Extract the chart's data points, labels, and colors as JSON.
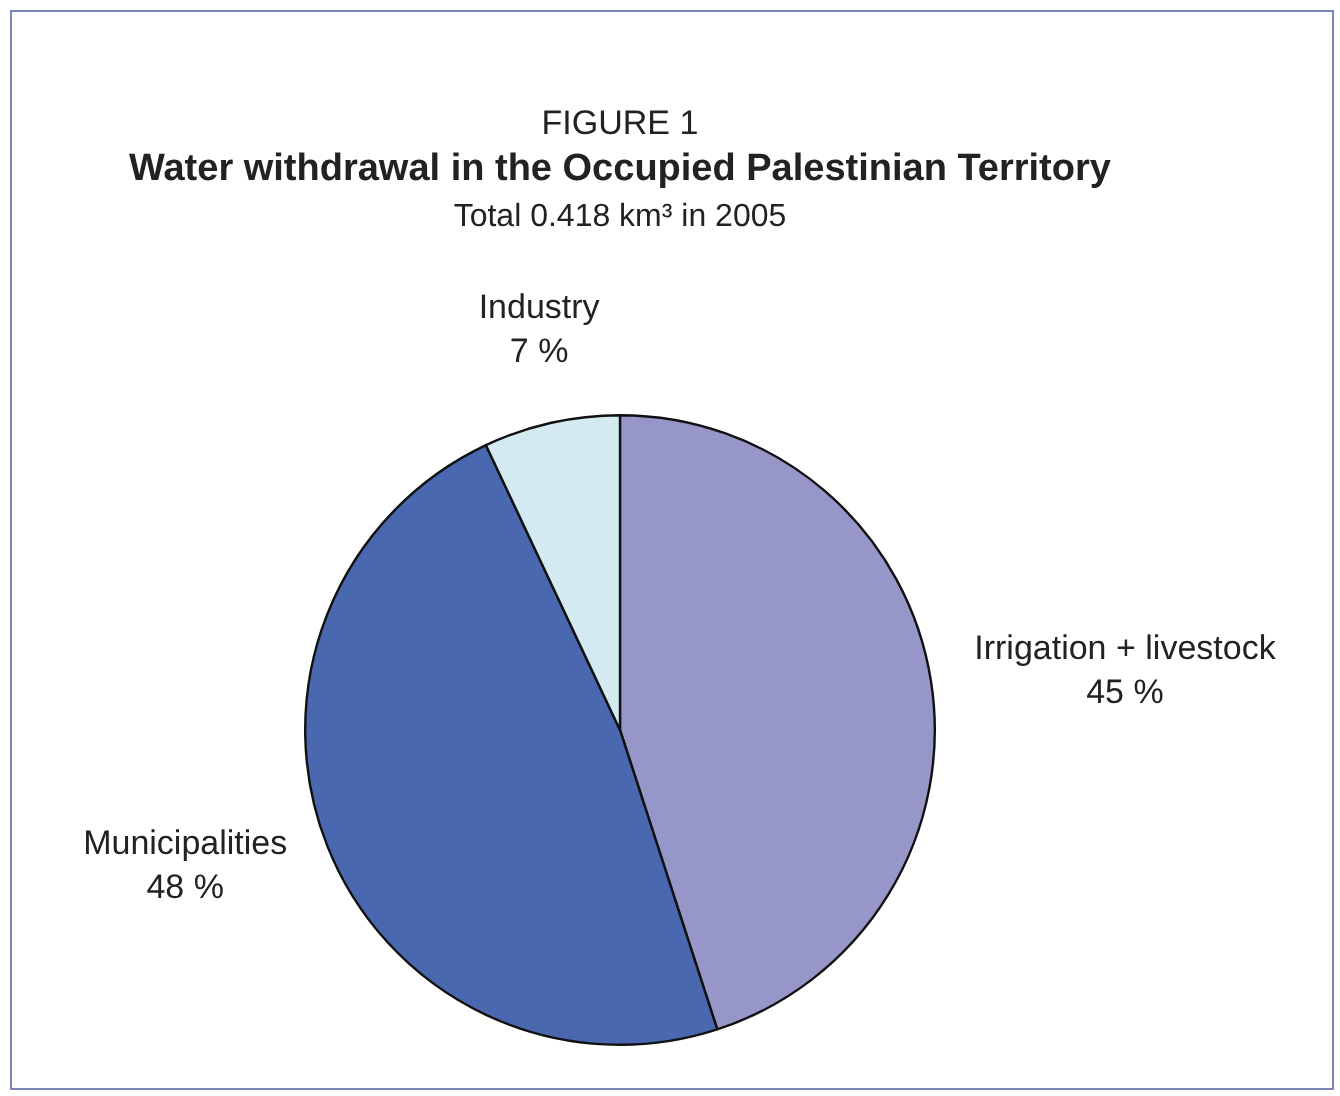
{
  "chart_data": {
    "type": "pie",
    "title": "Water withdrawal in the Occupied Palestinian Territory",
    "subtitle": "Total 0.418 km³ in 2005",
    "annotations": [
      "FIGURE 1"
    ],
    "categories": [
      "Irrigation + livestock",
      "Municipalities",
      "Industry"
    ],
    "values": [
      45,
      48,
      7
    ],
    "value_labels": [
      "45 %",
      "48 %",
      "7 %"
    ],
    "colors": [
      "#9696c8",
      "#4a68b0",
      "#d2eaf0"
    ],
    "legend": false
  }
}
